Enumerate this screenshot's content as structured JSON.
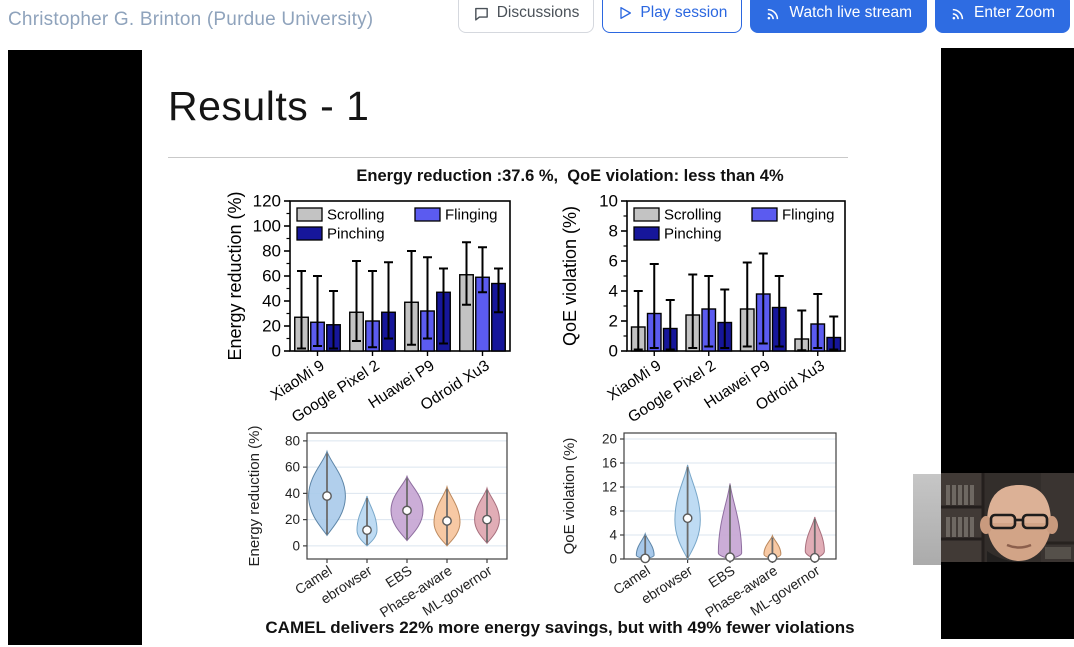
{
  "header": {
    "presenter": "Christopher G. Brinton (Purdue University)",
    "accent_color": "#2e6ce2",
    "buttons": [
      {
        "label": "Discussions",
        "icon": "chat-bubble",
        "style": "outline-gray"
      },
      {
        "label": "Play session",
        "icon": "play-triangle",
        "style": "outline-blue"
      },
      {
        "label": "Watch live stream",
        "icon": "live-stream",
        "style": "solid-blue"
      },
      {
        "label": "Enter Zoom",
        "icon": "live-stream",
        "style": "solid-blue"
      }
    ]
  },
  "slide": {
    "title": "Results - 1",
    "subtitle": "Energy reduction :37.6 %,  QoE violation: less than 4%",
    "caption": "CAMEL delivers 22% more energy savings, but with 49% fewer violations"
  },
  "chart_data": [
    {
      "id": "energy-bars",
      "type": "bar",
      "ylabel": "Energy reduction (%)",
      "ylim": [
        0,
        120
      ],
      "yticks": [
        0,
        20,
        40,
        60,
        80,
        100,
        120
      ],
      "grid": false,
      "legend_position": "top-inside",
      "categories": [
        "XiaoMi 9",
        "Google Pixel 2",
        "Huawei P9",
        "Odroid Xu3"
      ],
      "series": [
        {
          "name": "Scrolling",
          "color": "#c3c3c3",
          "values": [
            27,
            31,
            39,
            61
          ],
          "whisker_low": [
            2,
            8,
            5,
            37
          ],
          "whisker_high": [
            64,
            72,
            80,
            87
          ]
        },
        {
          "name": "Flinging",
          "color": "#5b5bf0",
          "values": [
            23,
            24,
            32,
            59
          ],
          "whisker_low": [
            4,
            3,
            10,
            47
          ],
          "whisker_high": [
            60,
            64,
            75,
            83
          ]
        },
        {
          "name": "Pinching",
          "color": "#16169a",
          "values": [
            21,
            31,
            47,
            54
          ],
          "whisker_low": [
            2,
            10,
            6,
            31
          ],
          "whisker_high": [
            48,
            71,
            66,
            66
          ]
        }
      ]
    },
    {
      "id": "qoe-bars",
      "type": "bar",
      "ylabel": "QoE violation (%)",
      "ylim": [
        0,
        10
      ],
      "yticks": [
        0,
        2,
        4,
        6,
        8,
        10
      ],
      "grid": false,
      "legend_position": "top-inside",
      "categories": [
        "XiaoMi 9",
        "Google Pixel 2",
        "Huawei P9",
        "Odroid Xu3"
      ],
      "series": [
        {
          "name": "Scrolling",
          "color": "#c3c3c3",
          "values": [
            1.6,
            2.4,
            2.8,
            0.8
          ],
          "whisker_low": [
            0.1,
            0.2,
            0.3,
            0.05
          ],
          "whisker_high": [
            4.0,
            5.1,
            5.9,
            2.7
          ]
        },
        {
          "name": "Flinging",
          "color": "#5b5bf0",
          "values": [
            2.5,
            2.8,
            3.8,
            1.8
          ],
          "whisker_low": [
            0.2,
            0.3,
            0.5,
            0.2
          ],
          "whisker_high": [
            5.8,
            5.0,
            6.5,
            3.8
          ]
        },
        {
          "name": "Pinching",
          "color": "#16169a",
          "values": [
            1.5,
            1.9,
            2.9,
            0.9
          ],
          "whisker_low": [
            0.1,
            0.2,
            0.3,
            0.1
          ],
          "whisker_high": [
            3.4,
            4.1,
            5.0,
            2.3
          ]
        }
      ]
    },
    {
      "id": "energy-violin",
      "type": "violin",
      "ylabel": "Energy reduction (%)",
      "ylim": [
        -10,
        86
      ],
      "yticks": [
        0,
        20,
        40,
        60,
        80
      ],
      "grid": true,
      "categories": [
        "Camel",
        "ebrowser",
        "EBS",
        "Phase-aware",
        "ML-governor"
      ],
      "violins": [
        {
          "name": "Camel",
          "color": "#aacbea",
          "edge": "#5e86a8",
          "median": 38,
          "min": 8,
          "max": 72,
          "peak": 38,
          "width": 0.92
        },
        {
          "name": "ebrowser",
          "color": "#b9d8f2",
          "edge": "#79a7c9",
          "median": 12,
          "min": 0,
          "max": 38,
          "peak": 12,
          "width": 0.5
        },
        {
          "name": "EBS",
          "color": "#c7a6d4",
          "edge": "#8f6fa0",
          "median": 27,
          "min": 4,
          "max": 53,
          "peak": 27,
          "width": 0.8
        },
        {
          "name": "Phase-aware",
          "color": "#f6c49c",
          "edge": "#bd8a5f",
          "median": 19,
          "min": 0,
          "max": 45,
          "peak": 18,
          "width": 0.65
        },
        {
          "name": "ML-governor",
          "color": "#dea6b0",
          "edge": "#a8707e",
          "median": 20,
          "min": 2,
          "max": 44,
          "peak": 20,
          "width": 0.62
        }
      ]
    },
    {
      "id": "qoe-violin",
      "type": "violin",
      "ylabel": "QoE violation (%)",
      "ylim": [
        0,
        21
      ],
      "yticks": [
        0,
        4,
        8,
        12,
        16,
        20
      ],
      "grid": true,
      "categories": [
        "Camel",
        "ebrowser",
        "EBS",
        "Phase-aware",
        "ML-governor"
      ],
      "violins": [
        {
          "name": "Camel",
          "color": "#9fc3e8",
          "edge": "#5e86a8",
          "median": 0.1,
          "min": 0,
          "max": 4.2,
          "peak": 0.6,
          "width": 0.42
        },
        {
          "name": "ebrowser",
          "color": "#b9d8f2",
          "edge": "#79a7c9",
          "median": 6.8,
          "min": 0,
          "max": 15.7,
          "peak": 6.5,
          "width": 0.6
        },
        {
          "name": "EBS",
          "color": "#c7a6d4",
          "edge": "#8f6fa0",
          "median": 0.3,
          "min": 0,
          "max": 12.6,
          "peak": 1.0,
          "width": 0.55
        },
        {
          "name": "Phase-aware",
          "color": "#f6c49c",
          "edge": "#bd8a5f",
          "median": 0.2,
          "min": 0,
          "max": 3.9,
          "peak": 0.8,
          "width": 0.4
        },
        {
          "name": "ML-governor",
          "color": "#dea6b0",
          "edge": "#a8707e",
          "median": 0.2,
          "min": 0,
          "max": 7.0,
          "peak": 1.3,
          "width": 0.45
        }
      ]
    }
  ],
  "webcam": {
    "description": "presenter camera feed"
  }
}
